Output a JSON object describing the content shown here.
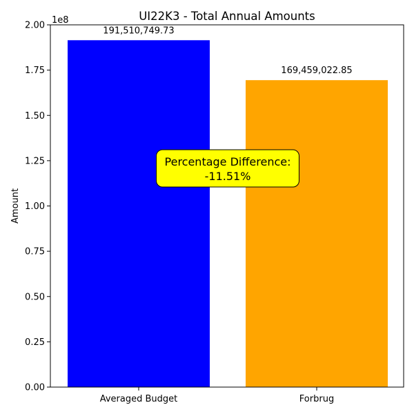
{
  "chart_data": {
    "type": "bar",
    "title": "UI22K3 - Total Annual Amounts",
    "ylabel": "Amount",
    "xlabel": "",
    "y_scale_label": "1e8",
    "scale": 100000000,
    "categories": [
      "Averaged Budget",
      "Forbrug"
    ],
    "values": [
      191510749.73,
      169459022.85
    ],
    "data_labels": [
      "191,510,749.73",
      "169,459,022.85"
    ],
    "colors": [
      "#0000ff",
      "#ffa500"
    ],
    "ylim": [
      0,
      200000000
    ],
    "yticks": [
      0,
      25000000,
      50000000,
      75000000,
      100000000,
      125000000,
      150000000,
      175000000,
      200000000
    ],
    "ytick_labels": [
      "0.00",
      "0.25",
      "0.50",
      "0.75",
      "1.00",
      "1.25",
      "1.50",
      "1.75",
      "2.00"
    ],
    "annotation": {
      "line1": "Percentage Difference:",
      "line2": "-11.51%",
      "value_y": 120000000,
      "background": "#ffff00"
    },
    "grid": false
  }
}
